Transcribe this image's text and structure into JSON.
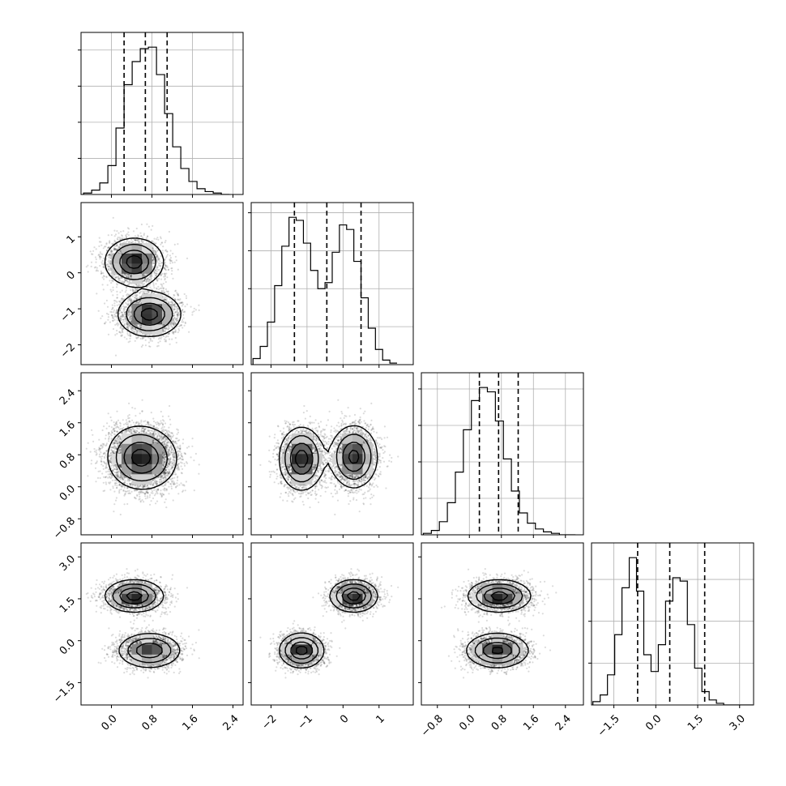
{
  "chart_data": {
    "type": "corner-plot",
    "title": "",
    "grid": true,
    "variables": [
      {
        "id": "p0",
        "label": "",
        "range": [
          -0.6,
          2.6
        ],
        "ticks": [
          "0.0",
          "0.8",
          "1.6",
          "2.4"
        ],
        "tick_values": [
          0.0,
          0.8,
          1.6,
          2.4
        ],
        "quantiles": [
          0.25,
          0.67,
          1.1
        ]
      },
      {
        "id": "p1",
        "label": "",
        "range": [
          -2.55,
          1.95
        ],
        "ticks": [
          "−2",
          "−1",
          "0",
          "1"
        ],
        "tick_values": [
          -2,
          -1,
          0,
          1
        ],
        "quantiles": [
          -1.35,
          -0.45,
          0.5
        ]
      },
      {
        "id": "p2",
        "label": "",
        "range": [
          -1.2,
          2.85
        ],
        "ticks": [
          "−0.8",
          "0.0",
          "0.8",
          "1.6",
          "2.4"
        ],
        "tick_values": [
          -0.8,
          0.0,
          0.8,
          1.6,
          2.4
        ],
        "quantiles": [
          0.25,
          0.73,
          1.22
        ]
      },
      {
        "id": "p3",
        "label": "",
        "range": [
          -2.3,
          3.5
        ],
        "ticks": [
          "−1.5",
          "0.0",
          "1.5",
          "3.0"
        ],
        "tick_values": [
          -1.5,
          0.0,
          1.5,
          3.0
        ],
        "quantiles": [
          -0.65,
          0.5,
          1.75
        ]
      }
    ],
    "histograms": [
      {
        "variable": "p0",
        "bin_start": -0.55,
        "bin_width": 0.16,
        "counts": [
          1,
          3,
          8,
          20,
          46,
          76,
          92,
          101,
          102,
          83,
          56,
          33,
          18,
          9,
          4,
          2,
          1,
          0
        ]
      },
      {
        "variable": "p1",
        "bin_start": -2.5,
        "bin_width": 0.2,
        "counts": [
          4,
          12,
          28,
          52,
          78,
          97,
          95,
          80,
          62,
          50,
          54,
          74,
          92,
          89,
          68,
          44,
          24,
          10,
          3,
          1
        ]
      },
      {
        "variable": "p2",
        "bin_start": -1.15,
        "bin_width": 0.2,
        "counts": [
          1,
          3,
          9,
          22,
          43,
          72,
          92,
          101,
          98,
          78,
          52,
          30,
          15,
          8,
          4,
          2,
          1,
          0,
          0
        ]
      },
      {
        "variable": "p3",
        "bin_start": -2.25,
        "bin_width": 0.26,
        "counts": [
          2,
          6,
          18,
          42,
          70,
          88,
          68,
          30,
          20,
          36,
          62,
          76,
          74,
          48,
          22,
          8,
          3,
          1,
          0,
          0,
          0,
          0
        ]
      }
    ],
    "modes": [
      {
        "p0": 0.45,
        "p1": 0.3,
        "p2": 0.75,
        "p3": 1.6,
        "weight": 0.5,
        "sd": [
          0.28,
          0.32,
          0.38,
          0.28
        ]
      },
      {
        "p0": 0.75,
        "p1": -1.15,
        "p2": 0.7,
        "p3": -0.35,
        "weight": 0.5,
        "sd": [
          0.3,
          0.3,
          0.38,
          0.3
        ]
      }
    ]
  }
}
